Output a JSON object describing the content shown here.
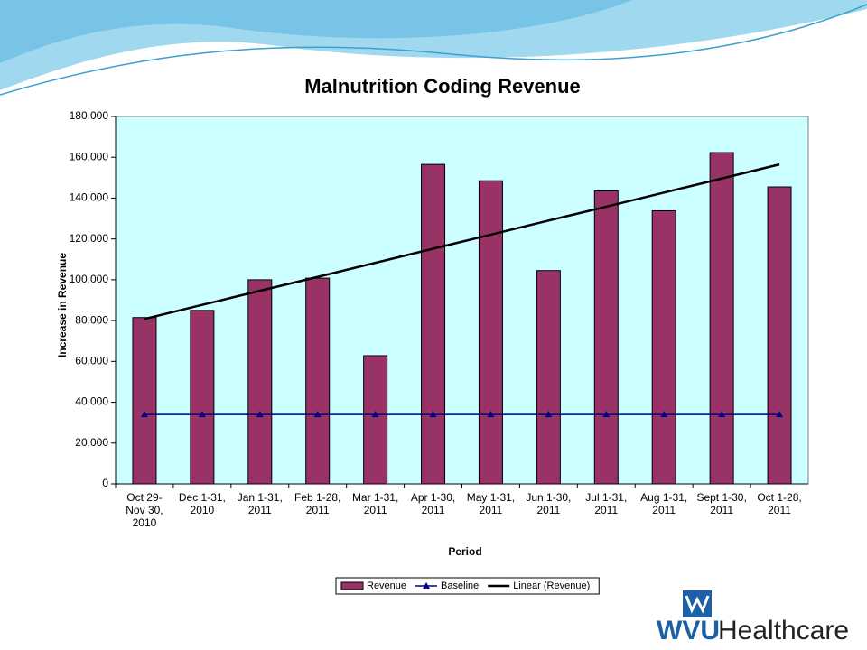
{
  "chart_data": {
    "type": "bar",
    "title": "Malnutrition Coding Revenue",
    "x_label": "Period",
    "y_label": "Increase in Revenue",
    "categories": [
      "Oct 29-\nNov 30,\n2010",
      "Dec 1-31,\n2010",
      "Jan 1-31,\n2011",
      "Feb 1-28,\n2011",
      "Mar 1-31,\n2011",
      "Apr 1-30,\n2011",
      "May 1-31,\n2011",
      "Jun 1-30,\n2011",
      "Jul 1-31,\n2011",
      "Aug 1-31,\n2011",
      "Sept 1-30,\n2011",
      "Oct 1-28,\n2011"
    ],
    "series": [
      {
        "name": "Revenue",
        "type": "bar",
        "color": "#993366",
        "values": [
          81500,
          85000,
          100000,
          100800,
          62800,
          156500,
          148500,
          104500,
          143500,
          133800,
          162300,
          145500
        ]
      },
      {
        "name": "Baseline",
        "type": "line",
        "marker": "triangle",
        "color": "#000080",
        "values": [
          34000,
          34000,
          34000,
          34000,
          34000,
          34000,
          34000,
          34000,
          34000,
          34000,
          34000,
          34000
        ]
      },
      {
        "name": "Linear (Revenue)",
        "type": "line",
        "color": "#000000",
        "values": [
          80800,
          87700,
          94600,
          101400,
          108300,
          115200,
          122100,
          129000,
          135800,
          142700,
          149600,
          156500
        ]
      }
    ],
    "ylim": [
      0,
      180000
    ],
    "yticks": [
      0,
      {
        "value": 20000,
        "label": "20,000"
      },
      {
        "value": 40000,
        "label": "40,000"
      },
      {
        "value": 60000,
        "label": "60,000"
      },
      {
        "value": 80000,
        "label": "80,000"
      },
      {
        "value": 100000,
        "label": "100,000"
      },
      {
        "value": 120000,
        "label": "120,000"
      },
      {
        "value": 140000,
        "label": "140,000"
      },
      {
        "value": 160000,
        "label": "160,000"
      },
      {
        "value": 180000,
        "label": "180,000"
      }
    ],
    "plot_background": "#ccffff",
    "legend": "bottom"
  },
  "logo": {
    "brand": "WVU",
    "name": "Healthcare"
  }
}
